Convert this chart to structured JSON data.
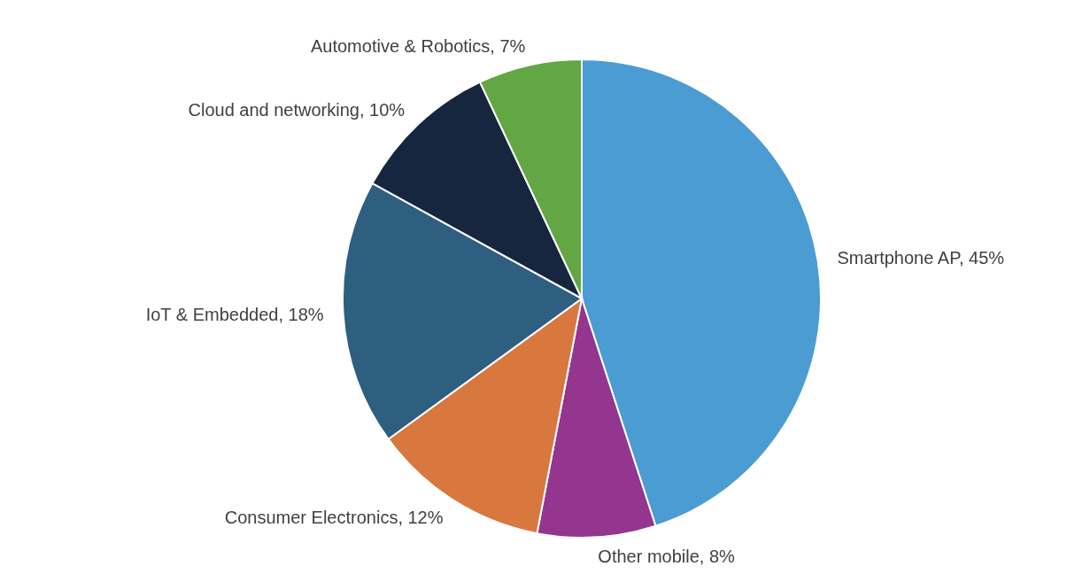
{
  "chart_data": {
    "type": "pie",
    "categories": [
      "Smartphone AP",
      "Other mobile",
      "Consumer Electronics",
      "IoT & Embedded",
      "Cloud and networking",
      "Automotive & Robotics"
    ],
    "values": [
      45,
      8,
      12,
      18,
      10,
      7
    ],
    "value_labels": [
      "45%",
      "8%",
      "12%",
      "18%",
      "10%",
      "7%"
    ],
    "colors": [
      "#4a9cd3",
      "#94358f",
      "#d8773e",
      "#2e5e80",
      "#17263f",
      "#63a644"
    ],
    "legend": false
  }
}
